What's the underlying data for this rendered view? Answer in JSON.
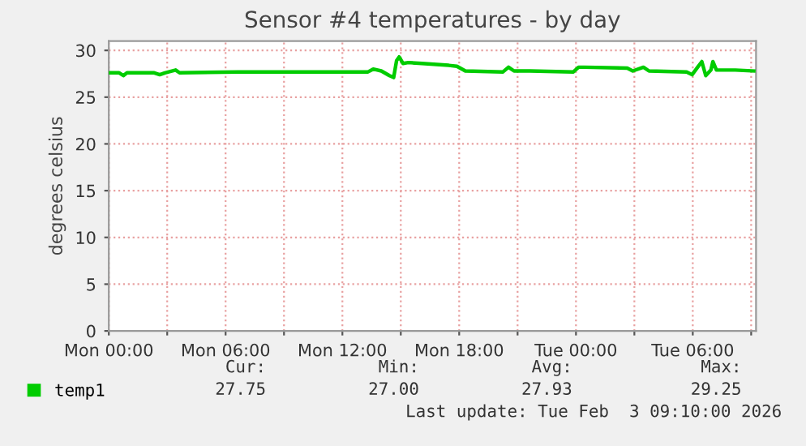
{
  "chart_data": {
    "type": "line",
    "title": "Sensor #4 temperatures - by day",
    "ylabel": "degrees celsius",
    "x": [
      "2026-02-02T00:02",
      "2026-02-02T00:32",
      "2026-02-02T00:45",
      "2026-02-02T00:56",
      "2026-02-02T02:20",
      "2026-02-02T02:37",
      "2026-02-02T02:53",
      "2026-02-02T03:26",
      "2026-02-02T03:38",
      "2026-02-02T06:38",
      "2026-02-02T13:19",
      "2026-02-02T13:35",
      "2026-02-02T14:00",
      "2026-02-02T14:25",
      "2026-02-02T14:38",
      "2026-02-02T14:47",
      "2026-02-02T14:55",
      "2026-02-02T15:07",
      "2026-02-02T15:23",
      "2026-02-02T16:05",
      "2026-02-02T17:28",
      "2026-02-02T17:53",
      "2026-02-02T18:19",
      "2026-02-02T20:15",
      "2026-02-02T20:32",
      "2026-02-02T20:49",
      "2026-02-02T21:38",
      "2026-02-02T23:52",
      "2026-02-03T00:08",
      "2026-02-03T00:25",
      "2026-02-03T02:38",
      "2026-02-03T02:55",
      "2026-02-03T03:28",
      "2026-02-03T03:45",
      "2026-02-03T05:41",
      "2026-02-03T05:58",
      "2026-02-03T06:15",
      "2026-02-03T06:28",
      "2026-02-03T06:40",
      "2026-02-03T06:56",
      "2026-02-03T07:02",
      "2026-02-03T07:13",
      "2026-02-03T08:11",
      "2026-02-03T09:08"
    ],
    "series": [
      {
        "name": "temp1",
        "color": "#00cc00",
        "values": [
          27.6,
          27.6,
          27.3,
          27.6,
          27.6,
          27.4,
          27.6,
          27.9,
          27.6,
          27.7,
          27.7,
          28.0,
          27.8,
          27.3,
          27.1,
          28.9,
          29.3,
          28.6,
          28.7,
          28.6,
          28.4,
          28.3,
          27.8,
          27.7,
          28.2,
          27.8,
          27.8,
          27.7,
          28.2,
          28.2,
          28.1,
          27.8,
          28.2,
          27.8,
          27.7,
          27.4,
          28.2,
          28.8,
          27.3,
          27.9,
          28.8,
          27.9,
          27.9,
          27.8
        ]
      }
    ],
    "xlim": [
      "2026-02-02T00:00",
      "2026-02-03T09:15"
    ],
    "ylim": [
      0,
      31
    ],
    "xticks": [
      {
        "value": "2026-02-02T00:00",
        "label": "Mon 00:00"
      },
      {
        "value": "2026-02-02T03:00",
        "label": null
      },
      {
        "value": "2026-02-02T06:00",
        "label": "Mon 06:00"
      },
      {
        "value": "2026-02-02T09:00",
        "label": null
      },
      {
        "value": "2026-02-02T12:00",
        "label": "Mon 12:00"
      },
      {
        "value": "2026-02-02T15:00",
        "label": null
      },
      {
        "value": "2026-02-02T18:00",
        "label": "Mon 18:00"
      },
      {
        "value": "2026-02-02T21:00",
        "label": null
      },
      {
        "value": "2026-02-03T00:00",
        "label": "Tue 00:00"
      },
      {
        "value": "2026-02-03T03:00",
        "label": null
      },
      {
        "value": "2026-02-03T06:00",
        "label": "Tue 06:00"
      },
      {
        "value": "2026-02-03T09:00",
        "label": null
      }
    ],
    "yticks": [
      0,
      5,
      10,
      15,
      20,
      25,
      30
    ],
    "grid": true,
    "legend": "bottom left",
    "line_style": "solid",
    "marker": "none",
    "annotations": [
      "Cur:",
      "Min:",
      "Avg:",
      "Max:",
      "27.75",
      "27.00",
      "27.93",
      "29.25",
      "Last update: Tue Feb  3 09:10:00 2026"
    ]
  }
}
